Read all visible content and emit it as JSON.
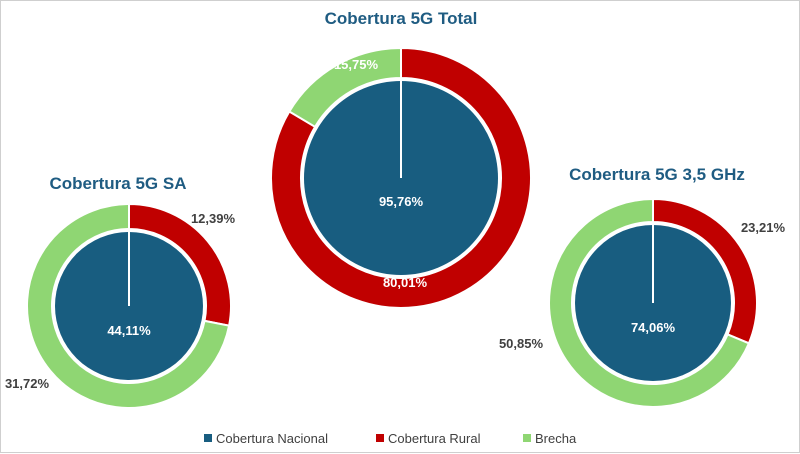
{
  "colors": {
    "nacional": "#185d80",
    "rural": "#c00000",
    "brecha": "#8fd673"
  },
  "legend": [
    {
      "label": "Cobertura Nacional",
      "color": "#185d80"
    },
    {
      "label": "Cobertura Rural",
      "color": "#c00000"
    },
    {
      "label": "Brecha",
      "color": "#8fd673"
    }
  ],
  "chart_data": [
    {
      "type": "pie",
      "title": "Cobertura 5G SA",
      "nacional": 44.11,
      "rural": 12.39,
      "brecha": 31.72,
      "labels": {
        "nacional": "44,11%",
        "rural": "12,39%",
        "brecha": "31,72%"
      }
    },
    {
      "type": "pie",
      "title": "Cobertura 5G Total",
      "nacional": 95.76,
      "rural": 80.01,
      "brecha": 15.75,
      "labels": {
        "nacional": "95,76%",
        "rural": "80,01%",
        "brecha": "15,75%"
      }
    },
    {
      "type": "pie",
      "title": "Cobertura 5G 3,5 GHz",
      "nacional": 74.06,
      "rural": 23.21,
      "brecha": 50.85,
      "labels": {
        "nacional": "74,06%",
        "rural": "23,21%",
        "brecha": "50,85%"
      }
    }
  ]
}
